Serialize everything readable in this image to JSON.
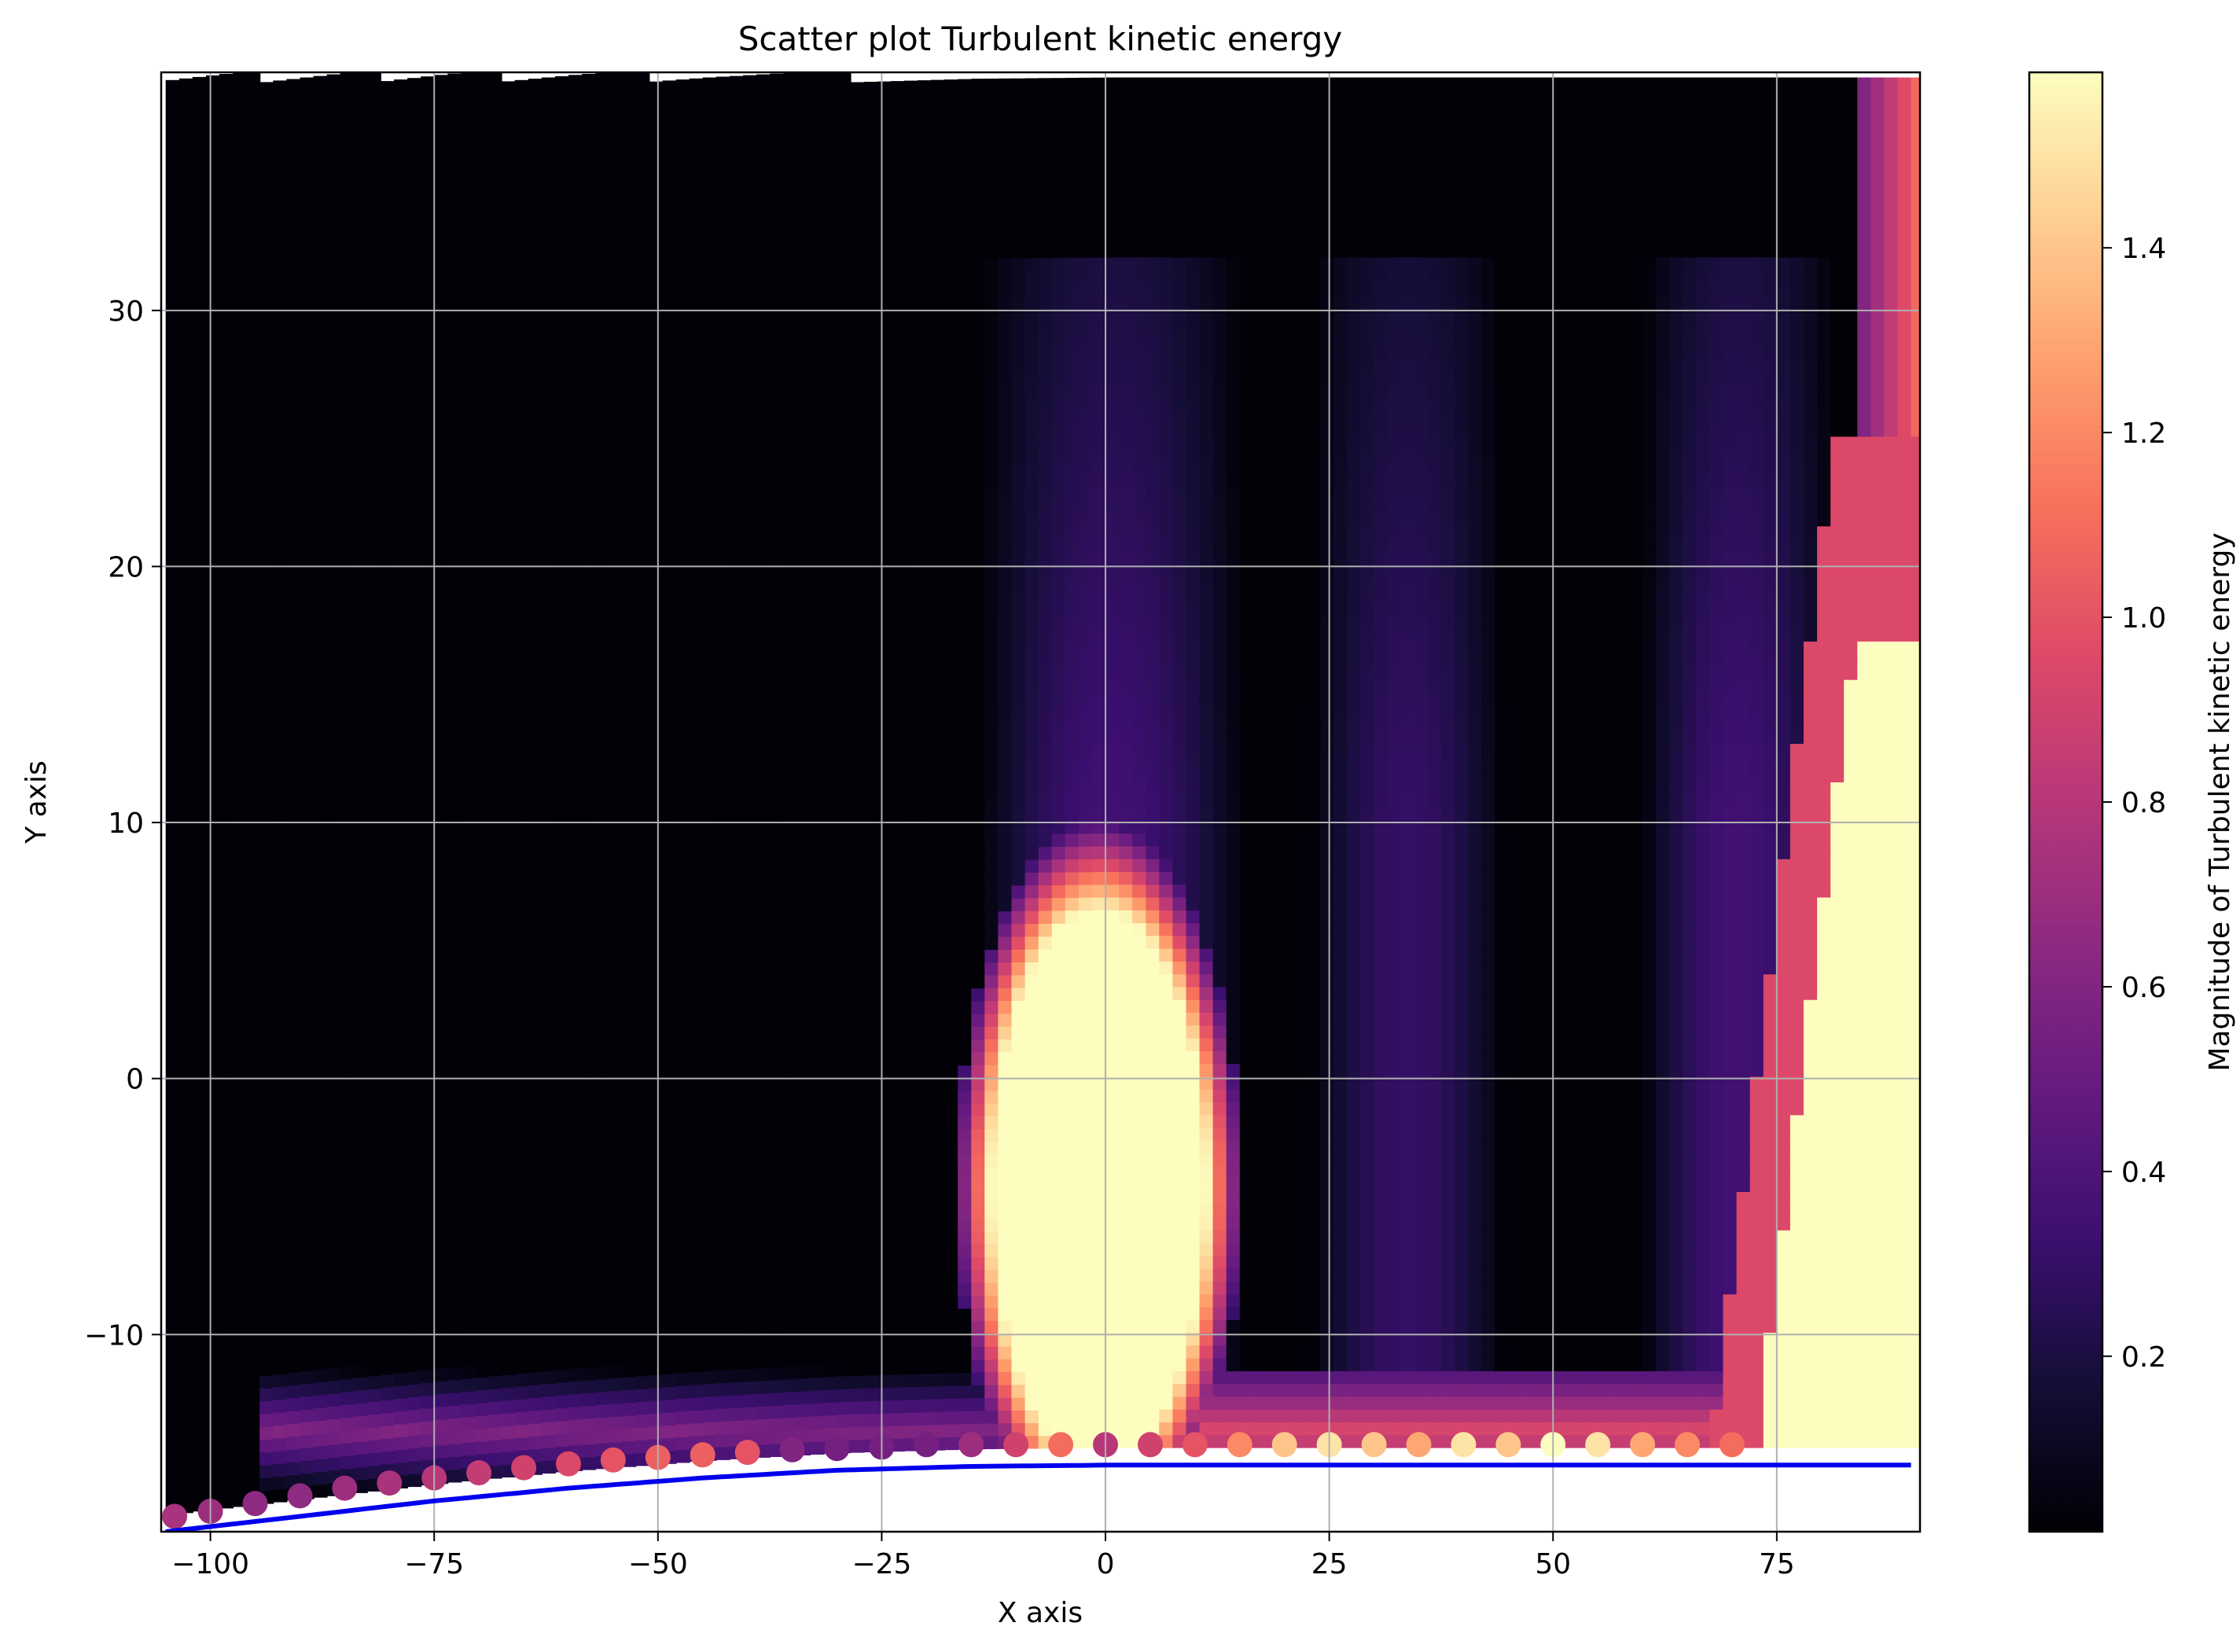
{
  "chart_data": {
    "type": "scatter",
    "title": "Scatter plot Turbulent kinetic energy",
    "xlabel": "X axis",
    "ylabel": "Y axis",
    "xlim": [
      -105.5,
      91
    ],
    "ylim": [
      -17.7,
      39.3
    ],
    "xticks": [
      {
        "value": -100,
        "label": "−100"
      },
      {
        "value": -75,
        "label": "−75"
      },
      {
        "value": -50,
        "label": "−50"
      },
      {
        "value": -25,
        "label": "−25"
      },
      {
        "value": 0,
        "label": "0"
      },
      {
        "value": 25,
        "label": "25"
      },
      {
        "value": 50,
        "label": "50"
      },
      {
        "value": 75,
        "label": "75"
      }
    ],
    "yticks": [
      {
        "value": -10,
        "label": "−10"
      },
      {
        "value": 0,
        "label": "0"
      },
      {
        "value": 10,
        "label": "10"
      },
      {
        "value": 20,
        "label": "20"
      },
      {
        "value": 30,
        "label": "30"
      }
    ],
    "grid": true,
    "colormap": "magma",
    "colorbar": {
      "label": "Magnitude of Turbulent kinetic energy",
      "range": [
        0.01,
        1.59
      ],
      "ticks": [
        {
          "value": 0.2,
          "label": "0.2"
        },
        {
          "value": 0.4,
          "label": "0.4"
        },
        {
          "value": 0.6,
          "label": "0.6"
        },
        {
          "value": 0.8,
          "label": "0.8"
        },
        {
          "value": 1.0,
          "label": "1.0"
        },
        {
          "value": 1.2,
          "label": "1.2"
        },
        {
          "value": 1.4,
          "label": "1.4"
        }
      ]
    },
    "scatter_domain": {
      "x_range": [
        -105,
        90
      ],
      "y_top": 38.9
    },
    "field_description_regions": [
      {
        "kind": "hot_blob",
        "x_center": -1.5,
        "y_center": -4.5,
        "x_halfwidth": 11,
        "y_halfwidth": 10,
        "value": 1.6
      },
      {
        "kind": "hot_wall",
        "x_from": 72,
        "x_to": 90,
        "y_from": -14.5,
        "y_to": 17,
        "value": 1.6
      },
      {
        "kind": "streak",
        "x_center": 0,
        "width": 30,
        "value": 0.35
      },
      {
        "kind": "streak",
        "x_center": 33,
        "width": 22,
        "value": 0.3
      },
      {
        "kind": "streak",
        "x_center": 70,
        "width": 22,
        "value": 0.35
      },
      {
        "kind": "near_wall_band",
        "y": -14.0,
        "value": 0.6
      }
    ],
    "boundary_line": {
      "color": "#0000ee",
      "x": [
        -105,
        -90,
        -75,
        -60,
        -45,
        -30,
        -15,
        0,
        30,
        60,
        90
      ],
      "y": [
        -17.7,
        -17.1,
        -16.5,
        -16.0,
        -15.6,
        -15.3,
        -15.15,
        -15.1,
        -15.1,
        -15.1,
        -15.1
      ]
    },
    "wall_markers": {
      "x": [
        -104,
        -100,
        -95,
        -90,
        -85,
        -80,
        -75,
        -70,
        -65,
        -60,
        -55,
        -50,
        -45,
        -40,
        -35,
        -30,
        -25,
        -20,
        -15,
        -10,
        -5,
        0,
        5,
        10,
        15,
        20,
        25,
        30,
        35,
        40,
        45,
        50,
        55,
        60,
        65,
        70
      ],
      "y": [
        -17.1,
        -16.9,
        -16.6,
        -16.3,
        -16.0,
        -15.8,
        -15.6,
        -15.4,
        -15.2,
        -15.05,
        -14.9,
        -14.8,
        -14.7,
        -14.6,
        -14.5,
        -14.45,
        -14.4,
        -14.3,
        -14.3,
        -14.3,
        -14.3,
        -14.3,
        -14.3,
        -14.3,
        -14.3,
        -14.3,
        -14.3,
        -14.3,
        -14.3,
        -14.3,
        -14.3,
        -14.3,
        -14.3,
        -14.3,
        -14.3,
        -14.3
      ],
      "values": [
        0.75,
        0.7,
        0.65,
        0.65,
        0.7,
        0.75,
        0.8,
        0.85,
        0.9,
        0.95,
        1.0,
        1.05,
        1.05,
        1.0,
        0.6,
        0.55,
        0.55,
        0.55,
        0.7,
        0.9,
        1.1,
        0.8,
        0.9,
        1.0,
        1.2,
        1.4,
        1.5,
        1.4,
        1.3,
        1.5,
        1.4,
        1.6,
        1.5,
        1.3,
        1.2,
        1.1
      ]
    }
  }
}
